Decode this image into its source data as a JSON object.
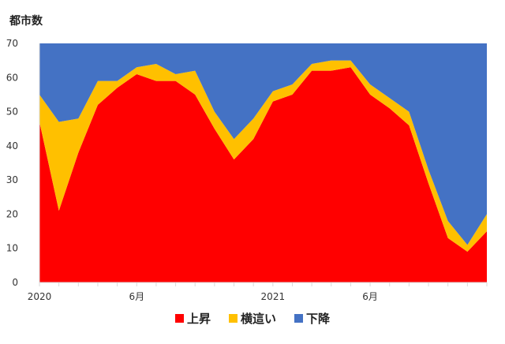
{
  "chart_data": {
    "type": "area",
    "stacked": true,
    "ylabel": "都市数",
    "xlabel": "",
    "title": "",
    "ylim": [
      0,
      70
    ],
    "y_ticks": [
      0,
      10,
      20,
      30,
      40,
      50,
      60,
      70
    ],
    "x_tick_labels": [
      {
        "index": 0,
        "label": "2020"
      },
      {
        "index": 5,
        "label": "6月"
      },
      {
        "index": 12,
        "label": "2021"
      },
      {
        "index": 17,
        "label": "6月"
      }
    ],
    "grid": false,
    "legend_position": "bottom",
    "series": [
      {
        "name": "上昇",
        "color": "#ff0000",
        "values": [
          47,
          21,
          38,
          52,
          57,
          61,
          59,
          59,
          55,
          45,
          36,
          42,
          53,
          55,
          62,
          62,
          63,
          55,
          51,
          46,
          29,
          13,
          9,
          15
        ]
      },
      {
        "name": "横這い",
        "color": "#ffc000",
        "values": [
          8,
          26,
          10,
          7,
          2,
          2,
          5,
          2,
          7,
          5,
          6,
          6,
          3,
          3,
          2,
          3,
          2,
          3,
          3,
          4,
          4,
          5,
          2,
          5
        ]
      },
      {
        "name": "下降",
        "color": "#4472c4",
        "values": [
          15,
          23,
          22,
          11,
          11,
          7,
          6,
          9,
          8,
          20,
          28,
          22,
          14,
          12,
          6,
          5,
          5,
          12,
          16,
          20,
          37,
          52,
          59,
          50
        ]
      }
    ]
  }
}
